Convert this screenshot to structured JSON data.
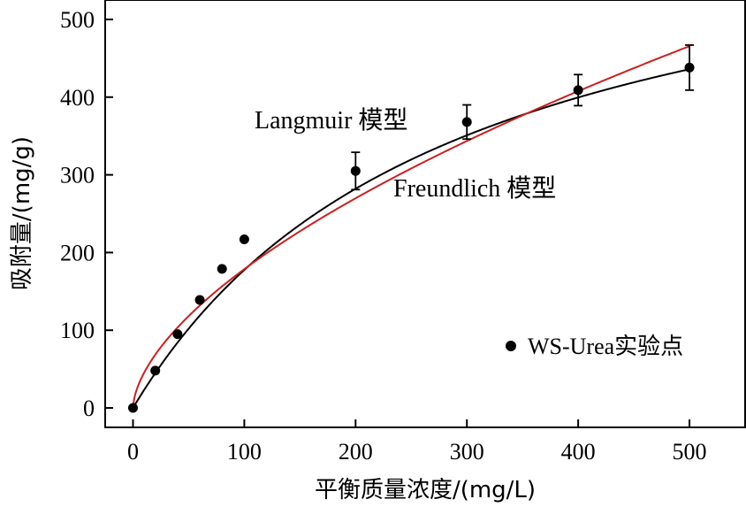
{
  "chart_data": {
    "type": "scatter",
    "title": "",
    "xlabel": "平衡质量浓度/(mg/L)",
    "ylabel": "吸附量/(mg/g)",
    "xlim": [
      -25,
      550
    ],
    "ylim": [
      -25,
      525
    ],
    "xticks": [
      0,
      100,
      200,
      300,
      400,
      500
    ],
    "yticks": [
      0,
      100,
      200,
      300,
      400,
      500
    ],
    "grid": false,
    "legend": {
      "position": "bottom-right"
    },
    "series": [
      {
        "name": "WS-Urea实验点",
        "kind": "points",
        "color": "#000000",
        "x": [
          0,
          20,
          40,
          60,
          80,
          100,
          200,
          300,
          400,
          500
        ],
        "y": [
          0,
          48,
          95,
          139,
          179,
          217,
          305,
          368,
          409,
          438
        ],
        "error": [
          null,
          null,
          null,
          null,
          null,
          null,
          24,
          22,
          20,
          29
        ]
      },
      {
        "name": "Langmuir 模型",
        "kind": "curve",
        "model": "langmuir",
        "qmax": 685,
        "KL": 0.0035,
        "color": "#000000"
      },
      {
        "name": "Freundlich 模型",
        "kind": "curve",
        "model": "freundlich",
        "KF": 11.52,
        "n": 1.68,
        "color": "#cc1f1f"
      }
    ],
    "annotations": [
      {
        "text": "Langmuir 模型",
        "at": [
          270,
          375
        ]
      },
      {
        "text": "Freundlich 模型",
        "at": [
          350,
          278
        ]
      }
    ]
  }
}
